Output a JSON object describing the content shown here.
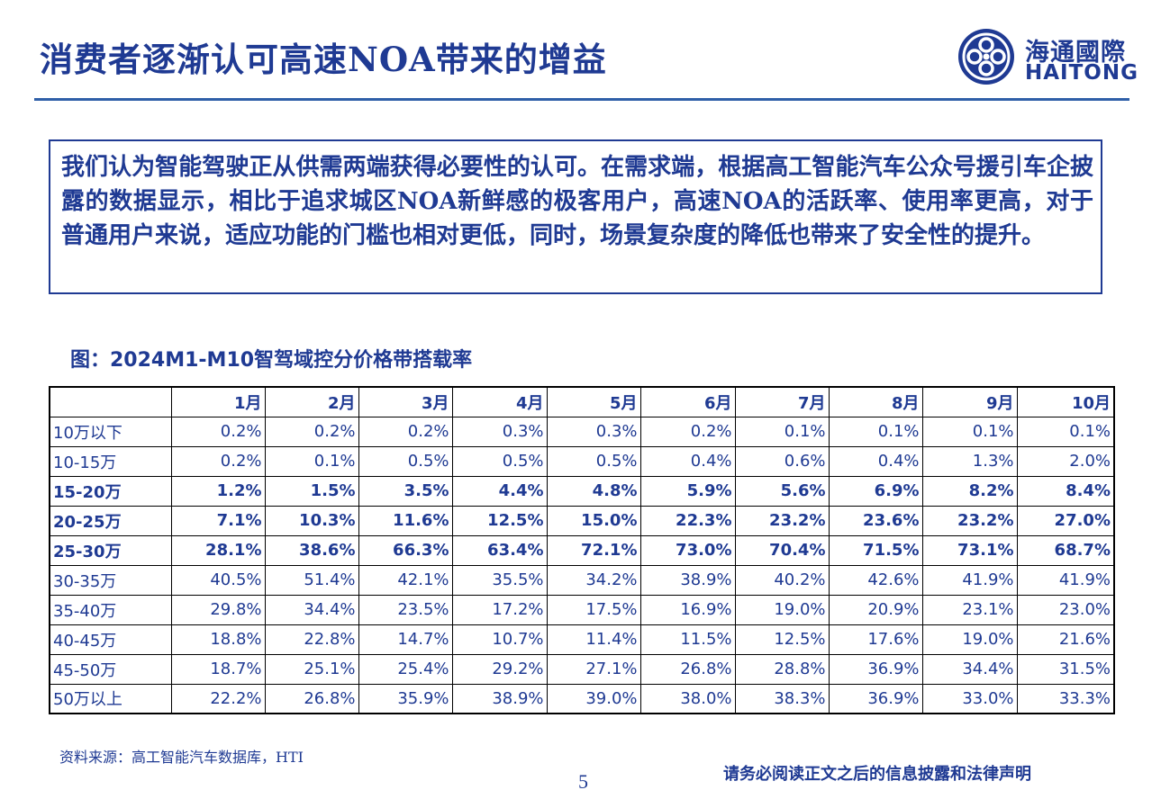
{
  "header": {
    "title": "消费者逐渐认可高速NOA带来的增益",
    "logo_cn": "海通國際",
    "logo_en": "HAITONG"
  },
  "summary": {
    "text": "我们认为智能驾驶正从供需两端获得必要性的认可。在需求端，根据高工智能汽车公众号援引车企披露的数据显示，相比于追求城区NOA新鲜感的极客用户，高速NOA的活跃率、使用率更高，对于普通用户来说，适应功能的门槛也相对更低，同时，场景复杂度的降低也带来了安全性的提升。"
  },
  "figure": {
    "caption": "图：2024M1-M10智驾域控分价格带搭载率"
  },
  "table": {
    "columns": [
      "1月",
      "2月",
      "3月",
      "4月",
      "5月",
      "6月",
      "7月",
      "8月",
      "9月",
      "10月"
    ],
    "rows": [
      {
        "label": "10万以下",
        "bold": false,
        "values": [
          "0.2%",
          "0.2%",
          "0.2%",
          "0.3%",
          "0.3%",
          "0.2%",
          "0.1%",
          "0.1%",
          "0.1%",
          "0.1%"
        ]
      },
      {
        "label": "10-15万",
        "bold": false,
        "values": [
          "0.2%",
          "0.1%",
          "0.5%",
          "0.5%",
          "0.5%",
          "0.4%",
          "0.6%",
          "0.4%",
          "1.3%",
          "2.0%"
        ]
      },
      {
        "label": "15-20万",
        "bold": true,
        "values": [
          "1.2%",
          "1.5%",
          "3.5%",
          "4.4%",
          "4.8%",
          "5.9%",
          "5.6%",
          "6.9%",
          "8.2%",
          "8.4%"
        ]
      },
      {
        "label": "20-25万",
        "bold": true,
        "values": [
          "7.1%",
          "10.3%",
          "11.6%",
          "12.5%",
          "15.0%",
          "22.3%",
          "23.2%",
          "23.6%",
          "23.2%",
          "27.0%"
        ]
      },
      {
        "label": "25-30万",
        "bold": true,
        "values": [
          "28.1%",
          "38.6%",
          "66.3%",
          "63.4%",
          "72.1%",
          "73.0%",
          "70.4%",
          "71.5%",
          "73.1%",
          "68.7%"
        ]
      },
      {
        "label": "30-35万",
        "bold": false,
        "values": [
          "40.5%",
          "51.4%",
          "42.1%",
          "35.5%",
          "34.2%",
          "38.9%",
          "40.2%",
          "42.6%",
          "41.9%",
          "41.9%"
        ]
      },
      {
        "label": "35-40万",
        "bold": false,
        "values": [
          "29.8%",
          "34.4%",
          "23.5%",
          "17.2%",
          "17.5%",
          "16.9%",
          "19.0%",
          "20.9%",
          "23.1%",
          "23.0%"
        ]
      },
      {
        "label": "40-45万",
        "bold": false,
        "values": [
          "18.8%",
          "22.8%",
          "14.7%",
          "10.7%",
          "11.4%",
          "11.5%",
          "12.5%",
          "17.6%",
          "19.0%",
          "21.6%"
        ]
      },
      {
        "label": "45-50万",
        "bold": false,
        "values": [
          "18.7%",
          "25.1%",
          "25.4%",
          "29.2%",
          "27.1%",
          "26.8%",
          "28.8%",
          "36.9%",
          "34.4%",
          "31.5%"
        ]
      },
      {
        "label": "50万以上",
        "bold": false,
        "values": [
          "22.2%",
          "26.8%",
          "35.9%",
          "38.9%",
          "39.0%",
          "38.0%",
          "38.3%",
          "36.9%",
          "33.0%",
          "33.3%"
        ]
      }
    ]
  },
  "footer": {
    "source": "资料来源：高工智能汽车数据库，HTI",
    "page_number": "5",
    "disclaimer": "请务必阅读正文之后的信息披露和法律声明"
  },
  "colors": {
    "brand_blue": "#1f3a93",
    "rule_blue": "#2f5fa8"
  }
}
